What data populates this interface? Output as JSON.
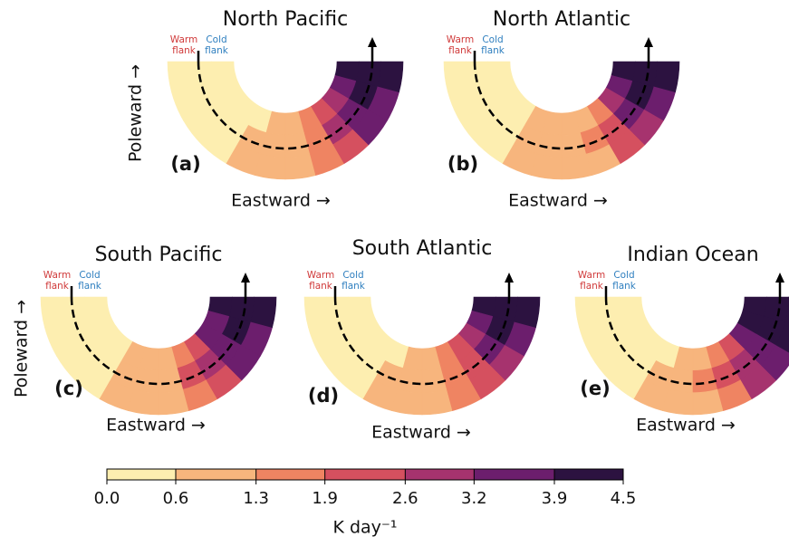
{
  "chart_data": [
    {
      "type": "arc-heatmap",
      "title": "North Pacific",
      "label": "(a)",
      "xlabel": "Eastward →",
      "ylabel": "Poleward →",
      "warm_label": [
        "Warm",
        "flank"
      ],
      "cold_label": [
        "Cold",
        "flank"
      ],
      "values": [
        [
          0.2,
          0.2,
          0.3,
          0.4,
          0.6,
          0.9,
          1.2,
          1.7,
          2.4,
          3.1,
          3.7,
          4.1
        ],
        [
          0.1,
          0.1,
          0.2,
          0.3,
          0.7,
          1.0,
          1.3,
          1.9,
          2.8,
          3.6,
          4.1,
          4.3
        ],
        [
          0.1,
          0.1,
          0.1,
          0.3,
          0.8,
          1.0,
          1.2,
          1.6,
          2.5,
          3.3,
          3.9,
          4.2
        ]
      ]
    },
    {
      "type": "arc-heatmap",
      "title": "North Atlantic",
      "label": "(b)",
      "xlabel": "Eastward →",
      "warm_label": [
        "Warm",
        "flank"
      ],
      "cold_label": [
        "Cold",
        "flank"
      ],
      "values": [
        [
          0.2,
          0.2,
          0.3,
          0.5,
          0.7,
          0.9,
          1.0,
          1.2,
          1.8,
          2.7,
          3.5,
          4.0
        ],
        [
          0.1,
          0.1,
          0.2,
          0.4,
          0.8,
          1.0,
          1.1,
          1.4,
          2.3,
          3.3,
          4.0,
          4.3
        ],
        [
          0.1,
          0.1,
          0.1,
          0.4,
          0.8,
          1.0,
          1.0,
          1.3,
          2.0,
          3.0,
          3.8,
          4.1
        ]
      ]
    },
    {
      "type": "arc-heatmap",
      "title": "South Pacific",
      "label": "(c)",
      "xlabel": "Eastward →",
      "ylabel": "Poleward →",
      "warm_label": [
        "Warm",
        "flank"
      ],
      "cold_label": [
        "Cold",
        "flank"
      ],
      "values": [
        [
          0.2,
          0.2,
          0.3,
          0.4,
          0.7,
          0.9,
          1.2,
          1.7,
          2.5,
          3.3,
          3.9,
          4.2
        ],
        [
          0.1,
          0.1,
          0.2,
          0.4,
          0.8,
          1.0,
          1.3,
          2.0,
          2.9,
          3.7,
          4.2,
          4.3
        ],
        [
          0.1,
          0.1,
          0.1,
          0.3,
          0.8,
          0.9,
          1.2,
          1.8,
          2.6,
          3.4,
          3.9,
          4.0
        ]
      ]
    },
    {
      "type": "arc-heatmap",
      "title": "South Atlantic",
      "label": "(d)",
      "xlabel": "Eastward →",
      "warm_label": [
        "Warm",
        "flank"
      ],
      "cold_label": [
        "Cold",
        "flank"
      ],
      "values": [
        [
          0.2,
          0.2,
          0.3,
          0.4,
          0.6,
          0.9,
          1.1,
          1.5,
          2.2,
          3.0,
          3.8,
          4.2
        ],
        [
          0.1,
          0.1,
          0.2,
          0.4,
          0.8,
          1.0,
          1.2,
          1.7,
          2.6,
          3.5,
          4.1,
          4.4
        ],
        [
          0.1,
          0.1,
          0.2,
          0.4,
          0.8,
          1.0,
          1.1,
          1.5,
          2.3,
          3.2,
          3.9,
          4.2
        ]
      ]
    },
    {
      "type": "arc-heatmap",
      "title": "Indian Ocean",
      "label": "(e)",
      "xlabel": "Eastward →",
      "warm_label": [
        "Warm",
        "flank"
      ],
      "cold_label": [
        "Cold",
        "flank"
      ],
      "values": [
        [
          0.2,
          0.2,
          0.3,
          0.4,
          0.6,
          0.9,
          1.2,
          1.8,
          2.6,
          3.4,
          4.0,
          4.3
        ],
        [
          0.1,
          0.1,
          0.2,
          0.3,
          0.7,
          1.0,
          1.4,
          2.1,
          3.0,
          3.8,
          4.2,
          4.4
        ],
        [
          0.1,
          0.1,
          0.1,
          0.3,
          0.7,
          0.9,
          1.3,
          1.9,
          2.7,
          3.5,
          4.0,
          4.2
        ]
      ]
    }
  ],
  "colorbar": {
    "label": "K day⁻¹",
    "ticks": [
      {
        "value": 0,
        "label": "0.0"
      },
      0.6,
      1.3,
      1.9,
      2.6,
      3.2,
      3.9,
      4.5
    ],
    "colors": [
      "#fdeeb0",
      "#f7b57d",
      "#ef8462",
      "#d5505f",
      "#a6336e",
      "#6c1e6d",
      "#2c1240"
    ]
  }
}
